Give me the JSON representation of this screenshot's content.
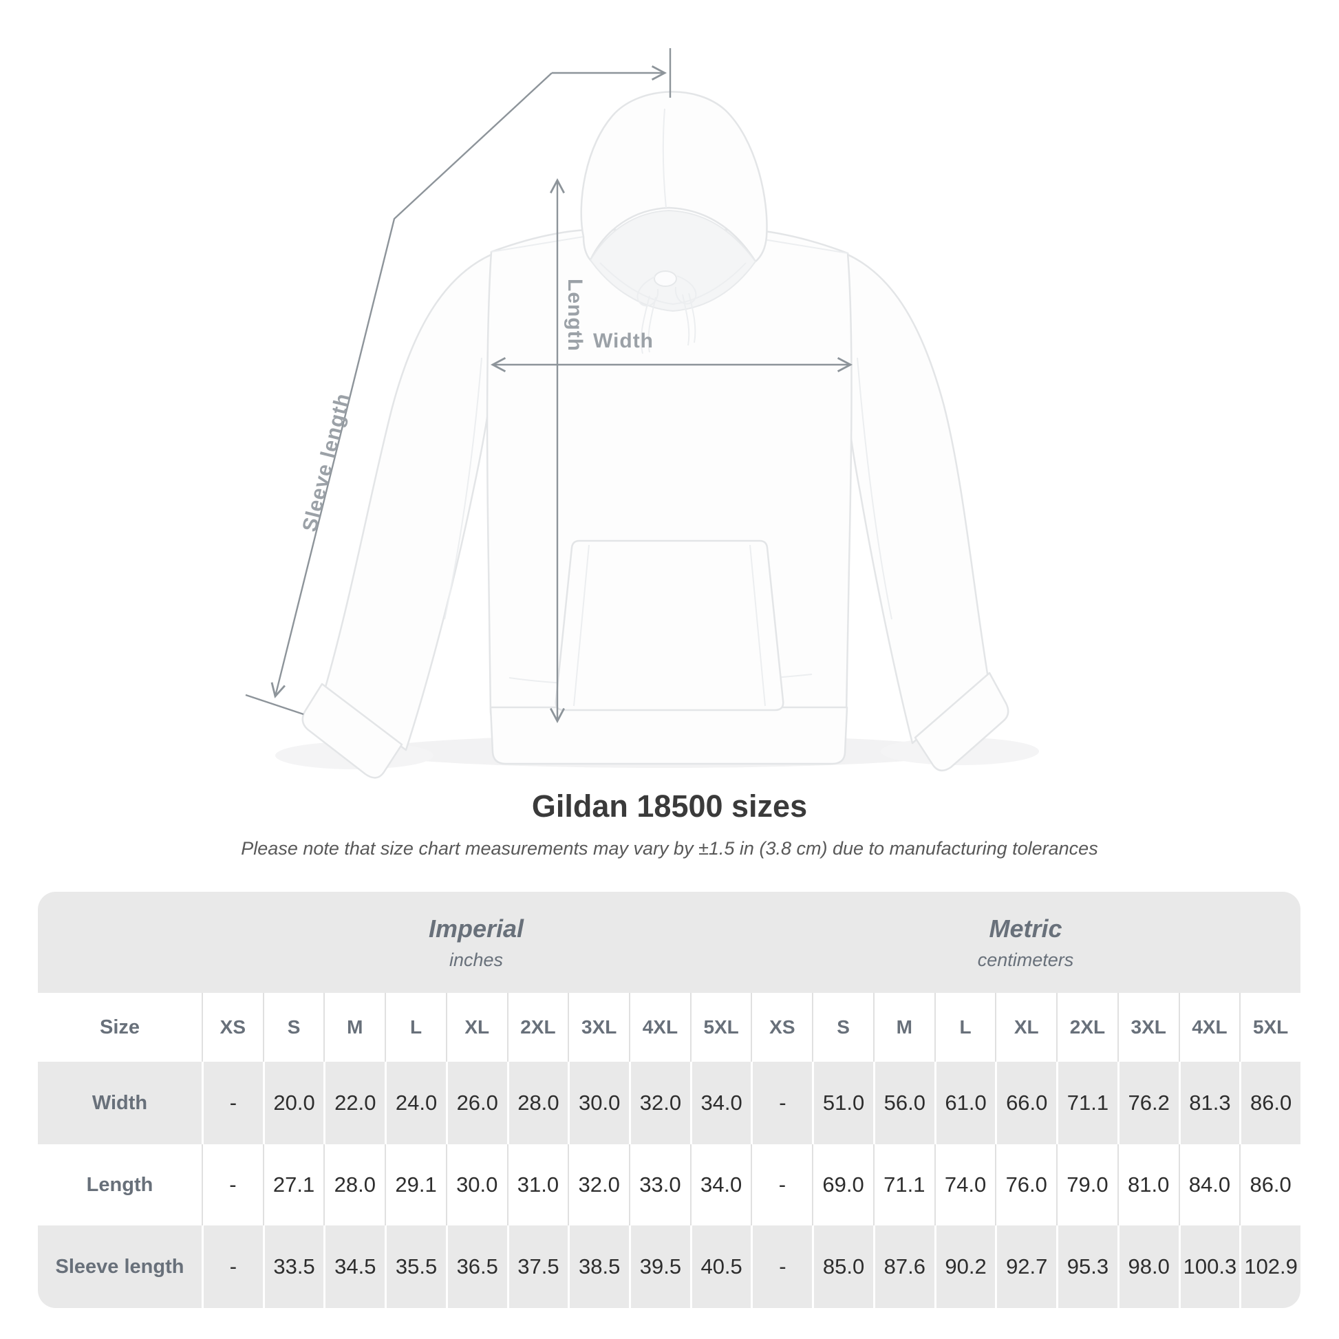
{
  "annotations": {
    "length": "Length",
    "width": "Width",
    "sleeve_length": "Sleeve length"
  },
  "title": "Gildan 18500 sizes",
  "subtitle": "Please note that size chart measurements may vary by ±1.5 in (3.8 cm) due to manufacturing tolerances",
  "table": {
    "unit_groups": [
      {
        "label": "Imperial",
        "sublabel": "inches"
      },
      {
        "label": "Metric",
        "sublabel": "centimeters"
      }
    ],
    "header": {
      "label": "Size",
      "sizes": [
        "XS",
        "S",
        "M",
        "L",
        "XL",
        "2XL",
        "3XL",
        "4XL",
        "5XL",
        "XS",
        "S",
        "M",
        "L",
        "XL",
        "2XL",
        "3XL",
        "4XL",
        "5XL"
      ]
    },
    "rows": [
      {
        "label": "Width",
        "values": [
          "-",
          "20.0",
          "22.0",
          "24.0",
          "26.0",
          "28.0",
          "30.0",
          "32.0",
          "34.0",
          "-",
          "51.0",
          "56.0",
          "61.0",
          "66.0",
          "71.1",
          "76.2",
          "81.3",
          "86.0"
        ]
      },
      {
        "label": "Length",
        "values": [
          "-",
          "27.1",
          "28.0",
          "29.1",
          "30.0",
          "31.0",
          "32.0",
          "33.0",
          "34.0",
          "-",
          "69.0",
          "71.1",
          "74.0",
          "76.0",
          "79.0",
          "81.0",
          "84.0",
          "86.0"
        ]
      },
      {
        "label": "Sleeve length",
        "values": [
          "-",
          "33.5",
          "34.5",
          "35.5",
          "36.5",
          "37.5",
          "38.5",
          "39.5",
          "40.5",
          "-",
          "85.0",
          "87.6",
          "90.2",
          "92.7",
          "95.3",
          "98.0",
          "100.3",
          "102.9"
        ]
      }
    ]
  },
  "chart_data": {
    "type": "table",
    "title": "Gildan 18500 sizes",
    "note": "Please note that size chart measurements may vary by ±1.5 in (3.8 cm) due to manufacturing tolerances",
    "sizes": [
      "XS",
      "S",
      "M",
      "L",
      "XL",
      "2XL",
      "3XL",
      "4XL",
      "5XL"
    ],
    "measurements": [
      "Width",
      "Length",
      "Sleeve length"
    ],
    "imperial_inches": {
      "Width": [
        null,
        20.0,
        22.0,
        24.0,
        26.0,
        28.0,
        30.0,
        32.0,
        34.0
      ],
      "Length": [
        null,
        27.1,
        28.0,
        29.1,
        30.0,
        31.0,
        32.0,
        33.0,
        34.0
      ],
      "Sleeve length": [
        null,
        33.5,
        34.5,
        35.5,
        36.5,
        37.5,
        38.5,
        39.5,
        40.5
      ]
    },
    "metric_centimeters": {
      "Width": [
        null,
        51.0,
        56.0,
        61.0,
        66.0,
        71.1,
        76.2,
        81.3,
        86.0
      ],
      "Length": [
        null,
        69.0,
        71.1,
        74.0,
        76.0,
        79.0,
        81.0,
        84.0,
        86.0
      ],
      "Sleeve length": [
        null,
        85.0,
        87.6,
        90.2,
        92.7,
        95.3,
        98.0,
        100.3,
        102.9
      ]
    }
  },
  "colors": {
    "table_band": "#e9e9e9",
    "header_text": "#68707a",
    "value_text": "#2d2d2d",
    "annotation_line": "#8d949a",
    "annotation_text": "#9ba1a7",
    "title_text": "#3a3a3a"
  }
}
